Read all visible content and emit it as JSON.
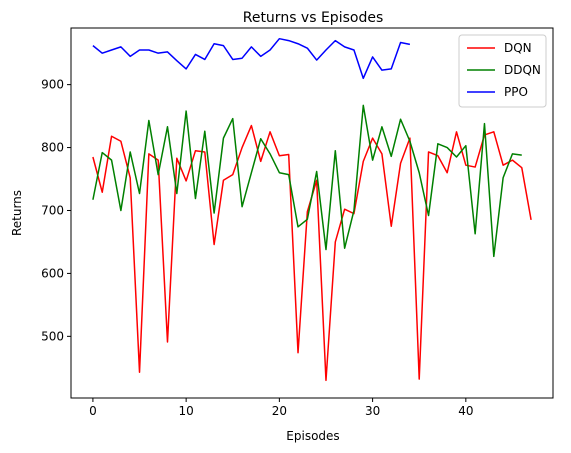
{
  "chart_data": {
    "type": "line",
    "title": "Returns vs Episodes",
    "xlabel": "Episodes",
    "ylabel": "Returns",
    "xlim": [
      -2.35,
      49.35
    ],
    "ylim": [
      402,
      990
    ],
    "xticks": [
      0,
      10,
      20,
      30,
      40
    ],
    "yticks": [
      500,
      600,
      700,
      800,
      900
    ],
    "grid": false,
    "legend_position": "top-right",
    "series": [
      {
        "name": "DQN",
        "color": "#ff0000",
        "x": [
          0,
          1,
          2,
          3,
          4,
          5,
          6,
          7,
          8,
          9,
          10,
          11,
          12,
          13,
          14,
          15,
          16,
          17,
          18,
          19,
          20,
          21,
          22,
          23,
          24,
          25,
          26,
          27,
          28,
          29,
          30,
          31,
          32,
          33,
          34,
          35,
          36,
          37,
          38,
          39,
          40,
          41,
          42,
          43,
          44,
          45,
          46,
          47
        ],
        "values": [
          785,
          729,
          818,
          810,
          752,
          443,
          790,
          780,
          491,
          783,
          747,
          795,
          793,
          646,
          748,
          757,
          800,
          835,
          778,
          825,
          787,
          789,
          474,
          698,
          748,
          430,
          650,
          702,
          695,
          778,
          815,
          790,
          675,
          775,
          815,
          432,
          793,
          787,
          760,
          825,
          772,
          769,
          820,
          825,
          772,
          780,
          768,
          685
        ]
      },
      {
        "name": "DDQN",
        "color": "#008000",
        "x": [
          0,
          1,
          2,
          3,
          4,
          5,
          6,
          7,
          8,
          9,
          10,
          11,
          12,
          13,
          14,
          15,
          16,
          17,
          18,
          19,
          20,
          21,
          22,
          23,
          24,
          25,
          26,
          27,
          28,
          29,
          30,
          31,
          32,
          33,
          34,
          35,
          36,
          37,
          38,
          39,
          40,
          41,
          42,
          43,
          44,
          45,
          46
        ],
        "values": [
          717,
          792,
          780,
          700,
          793,
          727,
          843,
          757,
          833,
          727,
          858,
          719,
          826,
          696,
          815,
          846,
          706,
          760,
          814,
          790,
          760,
          757,
          674,
          686,
          762,
          638,
          795,
          640,
          700,
          867,
          780,
          833,
          786,
          845,
          810,
          760,
          692,
          806,
          800,
          785,
          803,
          663,
          838,
          627,
          752,
          790,
          788
        ]
      },
      {
        "name": "PPO",
        "color": "#0000ff",
        "x": [
          0,
          1,
          2,
          3,
          4,
          5,
          6,
          7,
          8,
          9,
          10,
          11,
          12,
          13,
          14,
          15,
          16,
          17,
          18,
          19,
          20,
          21,
          22,
          23,
          24,
          25,
          26,
          27,
          28,
          29,
          30,
          31,
          32,
          33,
          34
        ],
        "values": [
          962,
          950,
          955,
          960,
          945,
          955,
          955,
          950,
          952,
          938,
          925,
          948,
          940,
          965,
          962,
          940,
          942,
          960,
          945,
          955,
          973,
          970,
          965,
          958,
          939,
          955,
          970,
          960,
          955,
          910,
          944,
          923,
          925,
          967,
          964
        ]
      }
    ]
  }
}
